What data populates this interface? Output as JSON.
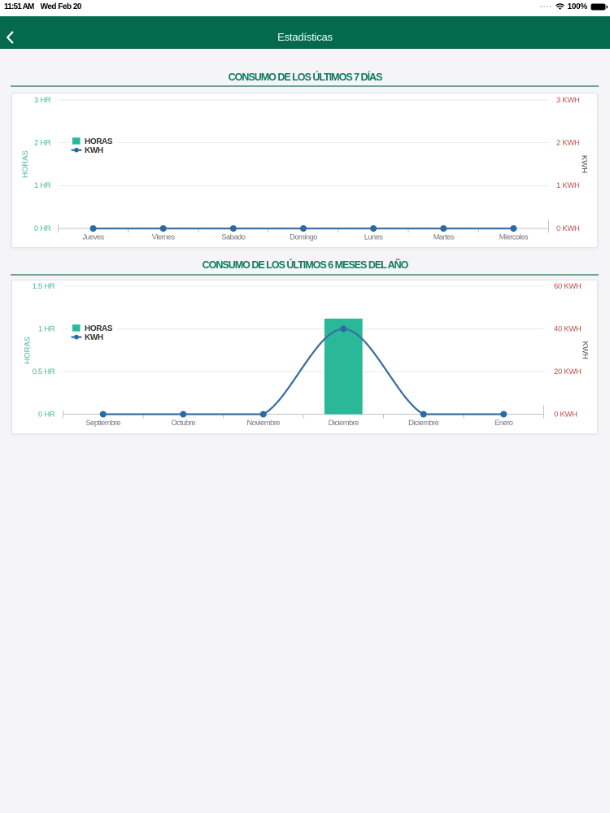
{
  "status_bar": {
    "time": "11:51 AM",
    "date": "Wed Feb 20",
    "battery_percent": "100%",
    "icons": [
      "cellular-signal-icon",
      "wifi-icon",
      "battery-icon"
    ]
  },
  "nav": {
    "title": "Estadísticas",
    "back_icon": "chevron-left-icon"
  },
  "colors": {
    "navbar_green": "#056a4d",
    "section_title_green": "#0d7b5f",
    "rule_teal": "#6da396",
    "axis_teal": "#45b69d",
    "bar_teal": "#29b999",
    "axis_red": "#c0504a",
    "line_blue": "#3b70a1",
    "dot_blue": "#2b6ba4",
    "legend_text": "#333333",
    "x_label_gray": "#75757d",
    "grid_gray": "#e9e9ef",
    "axis_gray": "#c2c2c8",
    "axis_name_gray": "#4a4a4a",
    "background": "#f5f4f7",
    "card_white": "#ffffff"
  },
  "chart_data": [
    {
      "type": "bar-line-combo",
      "title": "CONSUMO DE LOS ÚLTIMOS 7 DÍAS",
      "categories": [
        "Jueves",
        "Viernes",
        "Sabado",
        "Domingo",
        "Lunes",
        "Martes",
        "Miercoles"
      ],
      "series": [
        {
          "name": "HORAS",
          "type": "bar",
          "axis": "left",
          "values": [
            0,
            0,
            0,
            0,
            0,
            0,
            0
          ]
        },
        {
          "name": "KWH",
          "type": "line",
          "axis": "right",
          "values": [
            0,
            0,
            0,
            0,
            0,
            0,
            0
          ]
        }
      ],
      "left_axis": {
        "name": "HORAS",
        "min": 0,
        "max": 3,
        "ticks": [
          "0 HR",
          "1 HR",
          "2 HR",
          "3 HR"
        ]
      },
      "right_axis": {
        "name": "KWH",
        "min": 0,
        "max": 3,
        "ticks": [
          "0 KWH",
          "1 KWH",
          "2 KWH",
          "3 KWH"
        ]
      },
      "legend": [
        "HORAS",
        "KWH"
      ],
      "legend_position": "top-left",
      "grid": true
    },
    {
      "type": "bar-line-combo",
      "title": "CONSUMO DE LOS ÚLTIMOS 6 MESES DEL AÑO",
      "categories": [
        "Septiembre",
        "Octubre",
        "Noviembre",
        "Diciembre",
        "Diciembre",
        "Enero"
      ],
      "series": [
        {
          "name": "HORAS",
          "type": "bar",
          "axis": "left",
          "values": [
            0,
            0,
            0,
            1.12,
            0,
            0
          ]
        },
        {
          "name": "KWH",
          "type": "line",
          "axis": "right",
          "values": [
            0,
            0,
            0,
            40,
            0,
            0
          ]
        }
      ],
      "left_axis": {
        "name": "HORAS",
        "min": 0,
        "max": 1.5,
        "ticks": [
          "0 HR",
          "0.5 HR",
          "1 HR",
          "1.5 HR"
        ]
      },
      "right_axis": {
        "name": "KWH",
        "min": 0,
        "max": 60,
        "ticks": [
          "0 KWH",
          "20 KWH",
          "40 KWH",
          "60 KWH"
        ]
      },
      "legend": [
        "HORAS",
        "KWH"
      ],
      "legend_position": "top-left",
      "grid": true
    }
  ]
}
